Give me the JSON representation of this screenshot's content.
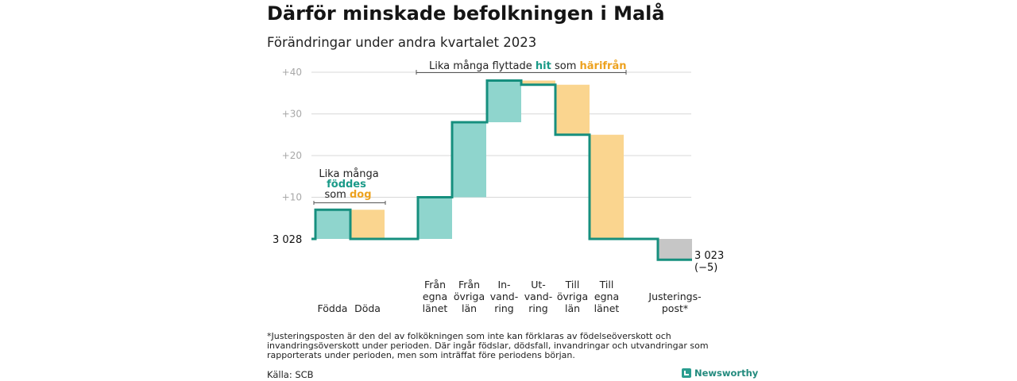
{
  "header": {
    "title": "Därför minskade befolkningen i Malå",
    "subtitle": "Förändringar under andra kvartalet 2023"
  },
  "chart_data": {
    "type": "waterfall",
    "baseline_label": "3 028",
    "end_label": [
      "3 023",
      "(−5)"
    ],
    "ytick_labels": [
      "+10",
      "+20",
      "+30",
      "+40"
    ],
    "yticks": [
      10,
      20,
      30,
      40
    ],
    "ylim": [
      -6,
      42
    ],
    "steps": [
      {
        "key": "fodda",
        "label": [
          "Födda"
        ],
        "change": 7,
        "kind": "in"
      },
      {
        "key": "doda",
        "label": [
          "Döda"
        ],
        "change": -7,
        "kind": "out"
      },
      {
        "key": "fran-egna",
        "label": [
          "Från",
          "egna",
          "länet"
        ],
        "change": 10,
        "kind": "in"
      },
      {
        "key": "fran-ovriga",
        "label": [
          "Från",
          "övriga",
          "län"
        ],
        "change": 18,
        "kind": "in"
      },
      {
        "key": "invandring",
        "label": [
          "In-",
          "vand-",
          "ring"
        ],
        "change": 10,
        "kind": "in"
      },
      {
        "key": "utvandring",
        "label": [
          "Ut-",
          "vand-",
          "ring"
        ],
        "change": -1,
        "kind": "out"
      },
      {
        "key": "till-ovriga",
        "label": [
          "Till",
          "övriga",
          "län"
        ],
        "change": -12,
        "kind": "out"
      },
      {
        "key": "till-egna",
        "label": [
          "Till",
          "egna",
          "länet"
        ],
        "change": -25,
        "kind": "out"
      },
      {
        "key": "justering",
        "label": [
          "Justerings-",
          "post*"
        ],
        "change": -5,
        "kind": "adj"
      }
    ],
    "annotations": {
      "births": {
        "line1": "Lika många",
        "word_in": "föddes",
        "word_pre": "som",
        "word_out": "dog"
      },
      "moves": {
        "text1": "Lika många flyttade",
        "word_in": "hit",
        "word_mid": "som",
        "word_out": "härifrån"
      }
    },
    "colors": {
      "in": "#8fd5cd",
      "out": "#fad58f",
      "adj": "#c6c6c6",
      "line": "#168f7e",
      "in_text": "#1a9a88",
      "out_text": "#eda21f"
    }
  },
  "footnote": "*Justeringsposten är den del av folkökningen som inte kan förklaras av födelseöverskott och invandringsöverskott under perioden. Där ingår födslar, dödsfall, invandringar och utvandringar som rapporterats under perioden, men som inträffat före periodens början.",
  "source": "Källa: SCB",
  "brand": {
    "name": "Newsworthy",
    "icon": "newsworthy-logo-icon"
  }
}
